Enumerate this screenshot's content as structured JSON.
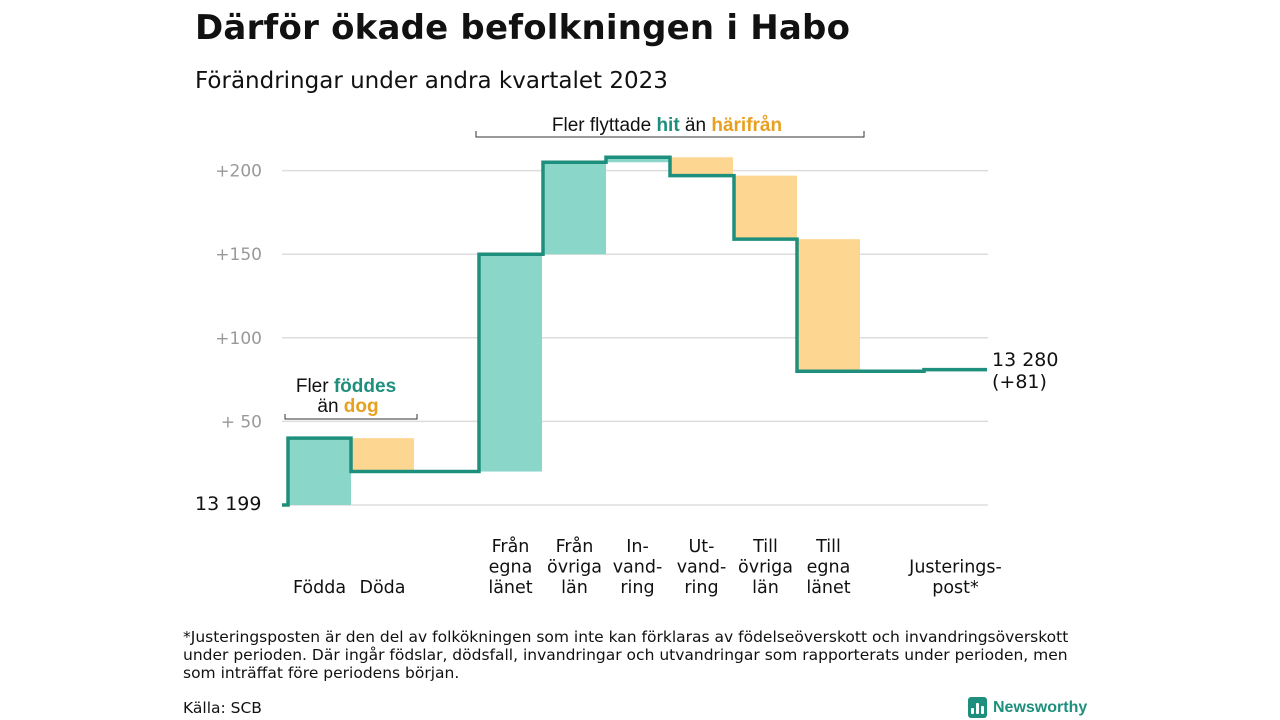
{
  "title": "Därför ökade befolkningen i Habo",
  "subtitle": "Förändringar under andra kvartalet 2023",
  "annotation_births": {
    "line1_prefix": "Fler ",
    "line1_highlight": "föddes",
    "line2_prefix": "än ",
    "line2_highlight": "dog"
  },
  "annotation_migration": {
    "prefix": "Fler flyttade ",
    "highlight_in": "hit",
    "middle": " än ",
    "highlight_out": "härifrån"
  },
  "colors": {
    "increase_fill": "#8ad6c9",
    "decrease_fill": "#fdd792",
    "line": "#1f8f7d",
    "teal_text": "#1f8f7d",
    "orange_text": "#e8a020",
    "grid": "#dddddd",
    "tick_text": "#999999"
  },
  "chart_data": {
    "type": "waterfall",
    "start_label": "13  199",
    "end_label_line1": "13 280",
    "end_label_line2": "(+81)",
    "start_value": 13199,
    "end_value": 13280,
    "yticks": [
      {
        "value": 50,
        "label": "+  50"
      },
      {
        "value": 100,
        "label": "+100"
      },
      {
        "value": 150,
        "label": "+150"
      },
      {
        "value": 200,
        "label": "+200"
      }
    ],
    "ylim": [
      0,
      205
    ],
    "steps": [
      {
        "label": [
          "Födda"
        ],
        "change": 40,
        "from": 0,
        "to": 40
      },
      {
        "label": [
          "Döda"
        ],
        "change": -20,
        "from": 40,
        "to": 20
      },
      {
        "label": [
          "Från",
          "egna",
          "länet"
        ],
        "change": 130,
        "from": 20,
        "to": 150
      },
      {
        "label": [
          "Från",
          "övriga",
          "län"
        ],
        "change": 55,
        "from": 150,
        "to": 205
      },
      {
        "label": [
          "In-",
          "vand-",
          "ring"
        ],
        "change": 3,
        "from": 205,
        "to": 208
      },
      {
        "label": [
          "Ut-",
          "vand-",
          "ring"
        ],
        "change": -11,
        "from": 208,
        "to": 197
      },
      {
        "label": [
          "Till",
          "övriga",
          "län"
        ],
        "change": -38,
        "from": 197,
        "to": 159
      },
      {
        "label": [
          "Till",
          "egna",
          "länet"
        ],
        "change": -79,
        "from": 159,
        "to": 80
      },
      {
        "label": [
          "Justerings-",
          "post*"
        ],
        "change": 1,
        "from": 80,
        "to": 81
      }
    ]
  },
  "footnote": "*Justeringsposten är den del av folkökningen som inte kan förklaras av födelseöverskott och invandringsöverskott under perioden. Där ingår födslar, dödsfall, invandringar och utvandringar som rapporterats under perioden, men som inträffat före periodens början.",
  "source": "Källa: SCB",
  "brand": {
    "name": "Newsworthy",
    "icon": "bar-chart-icon"
  }
}
